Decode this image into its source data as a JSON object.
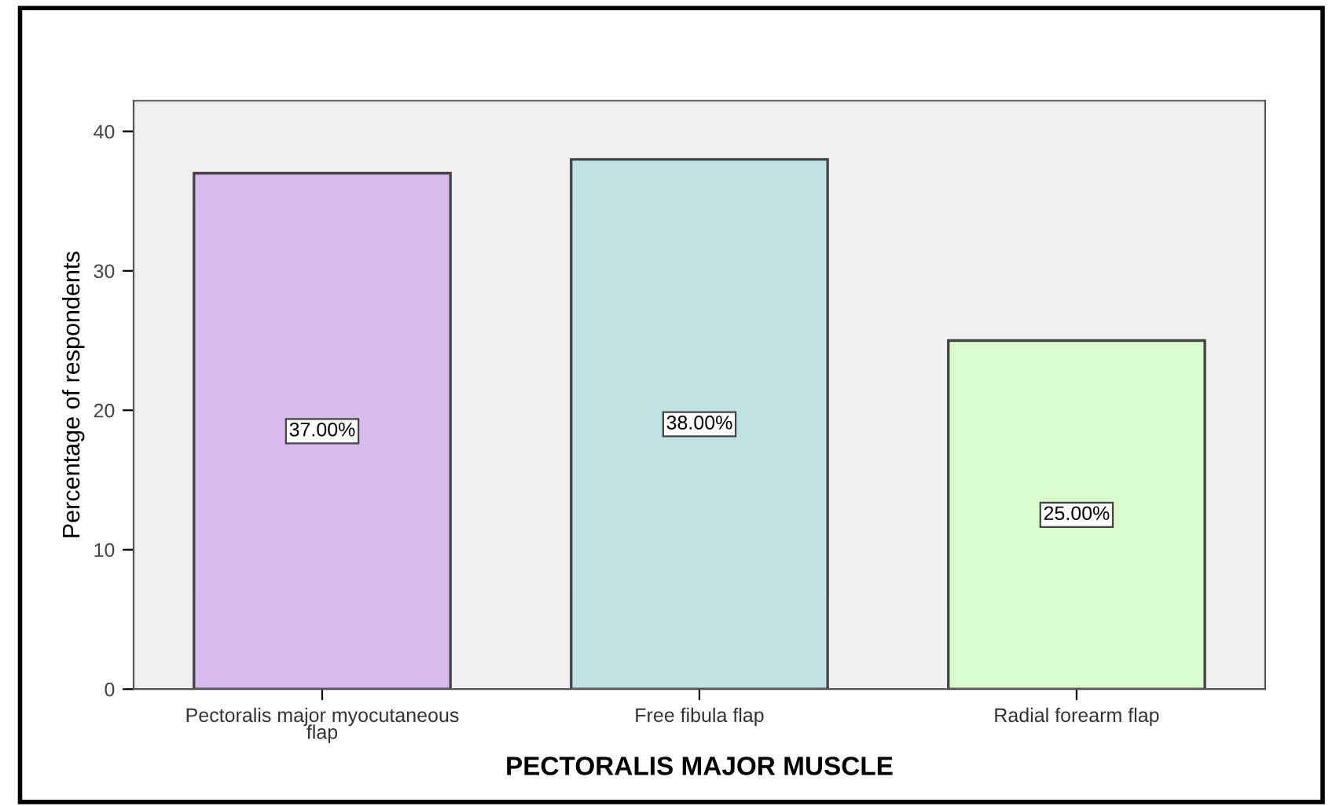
{
  "chart_data": {
    "type": "bar",
    "xlabel": "PECTORALIS MAJOR MUSCLE",
    "ylabel": "Percentage of respondents",
    "categories": [
      "Pectoralis major myocutaneous\nflap",
      "Free fibula flap",
      "Radial forearm flap"
    ],
    "values": [
      37,
      38,
      25
    ],
    "colors": [
      "#d7bbee",
      "#bfe3e3",
      "#d8fccc"
    ],
    "value_labels": [
      "37.00%",
      "38.00%",
      "25.00%"
    ],
    "ylim": [
      0,
      42.2
    ],
    "yticks": [
      0,
      10,
      20,
      30,
      40
    ],
    "grid": false,
    "legend": false
  }
}
